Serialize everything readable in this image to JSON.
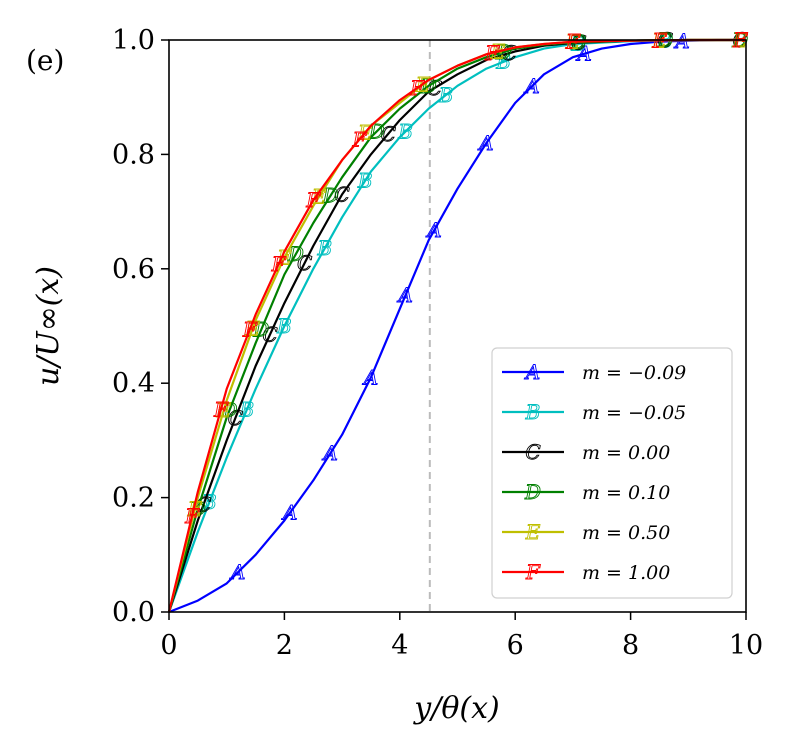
{
  "chart_data": {
    "type": "line",
    "panel_label": "(e)",
    "xlabel": "y/θ(x)",
    "ylabel": "u/U∞(x)",
    "xlim": [
      0,
      10
    ],
    "ylim": [
      0,
      1
    ],
    "x_ticks": [
      "0",
      "2",
      "4",
      "6",
      "8",
      "10"
    ],
    "y_ticks": [
      "0.0",
      "0.2",
      "0.4",
      "0.6",
      "0.8",
      "1.0"
    ],
    "vline_x": 4.52,
    "series": [
      {
        "name": "m = −0.09",
        "marker": "A",
        "color": "#0000ff",
        "x": [
          0,
          0.5,
          1.0,
          1.5,
          2.0,
          2.5,
          3.0,
          3.5,
          4.0,
          4.5,
          5.0,
          5.5,
          6.0,
          6.5,
          7.0,
          7.5,
          8.0,
          8.5,
          9.0,
          9.5,
          10.0
        ],
        "y": [
          0,
          0.02,
          0.05,
          0.1,
          0.16,
          0.23,
          0.31,
          0.41,
          0.53,
          0.65,
          0.74,
          0.82,
          0.89,
          0.94,
          0.97,
          0.985,
          0.993,
          0.997,
          0.999,
          1.0,
          1.0
        ],
        "marker_x": [
          1.2,
          2.1,
          2.8,
          3.5,
          4.1,
          4.6,
          5.5,
          6.3,
          7.2,
          8.9
        ]
      },
      {
        "name": "m = −0.05",
        "marker": "B",
        "color": "#00bfbf",
        "x": [
          0,
          0.5,
          1.0,
          1.5,
          2.0,
          2.5,
          3.0,
          3.5,
          4.0,
          4.5,
          5.0,
          5.5,
          6.0,
          6.5,
          7.0,
          8.0,
          9.0,
          10.0
        ],
        "y": [
          0,
          0.14,
          0.27,
          0.39,
          0.5,
          0.6,
          0.69,
          0.77,
          0.83,
          0.88,
          0.92,
          0.95,
          0.97,
          0.985,
          0.993,
          0.998,
          1.0,
          1.0
        ],
        "marker_x": [
          0.7,
          1.35,
          2.0,
          2.7,
          3.4,
          4.1,
          4.8,
          5.8,
          7.1,
          8.6,
          9.9
        ]
      },
      {
        "name": "m = 0.00",
        "marker": "C",
        "color": "#000000",
        "x": [
          0,
          0.5,
          1.0,
          1.5,
          2.0,
          2.5,
          3.0,
          3.5,
          4.0,
          4.5,
          5.0,
          5.5,
          6.0,
          6.5,
          7.0,
          8.0,
          9.0,
          10.0
        ],
        "y": [
          0,
          0.16,
          0.3,
          0.43,
          0.54,
          0.64,
          0.73,
          0.8,
          0.86,
          0.91,
          0.94,
          0.965,
          0.98,
          0.99,
          0.995,
          0.999,
          1.0,
          1.0
        ],
        "marker_x": [
          0.6,
          1.15,
          1.75,
          2.35,
          3.0,
          3.8,
          4.6,
          5.9,
          7.1,
          8.6,
          9.9
        ]
      },
      {
        "name": "m = 0.10",
        "marker": "D",
        "color": "#008000",
        "x": [
          0,
          0.5,
          1.0,
          1.5,
          2.0,
          2.5,
          3.0,
          3.5,
          4.0,
          4.5,
          5.0,
          5.5,
          6.0,
          6.5,
          7.0,
          8.0,
          9.0,
          10.0
        ],
        "y": [
          0,
          0.18,
          0.34,
          0.47,
          0.59,
          0.68,
          0.76,
          0.83,
          0.88,
          0.92,
          0.95,
          0.97,
          0.985,
          0.992,
          0.996,
          0.999,
          1.0,
          1.0
        ],
        "marker_x": [
          0.5,
          1.05,
          1.6,
          2.2,
          2.8,
          3.6,
          4.5,
          5.8,
          7.1,
          8.6,
          9.9
        ]
      },
      {
        "name": "m = 0.50",
        "marker": "E",
        "color": "#bfbf00",
        "x": [
          0,
          0.5,
          1.0,
          1.5,
          2.0,
          2.5,
          3.0,
          3.5,
          4.0,
          4.5,
          5.0,
          5.5,
          6.0,
          6.5,
          7.0,
          8.0,
          9.0,
          10.0
        ],
        "y": [
          0,
          0.2,
          0.37,
          0.51,
          0.62,
          0.71,
          0.79,
          0.85,
          0.89,
          0.93,
          0.955,
          0.975,
          0.987,
          0.993,
          0.997,
          0.999,
          1.0,
          1.0
        ],
        "marker_x": [
          0.45,
          0.95,
          1.45,
          2.0,
          2.6,
          3.4,
          4.4,
          5.7,
          7.0,
          8.5,
          9.9
        ]
      },
      {
        "name": "m = 1.00",
        "marker": "F",
        "color": "#ff0000",
        "x": [
          0,
          0.5,
          1.0,
          1.5,
          2.0,
          2.5,
          3.0,
          3.5,
          4.0,
          4.5,
          5.0,
          5.5,
          6.0,
          6.5,
          7.0,
          8.0,
          9.0,
          10.0
        ],
        "y": [
          0,
          0.21,
          0.39,
          0.52,
          0.63,
          0.72,
          0.79,
          0.85,
          0.895,
          0.93,
          0.955,
          0.975,
          0.987,
          0.993,
          0.997,
          0.999,
          1.0,
          1.0
        ],
        "marker_x": [
          0.4,
          0.9,
          1.4,
          1.9,
          2.5,
          3.3,
          4.3,
          5.6,
          7.0,
          8.5,
          9.9
        ]
      }
    ]
  }
}
